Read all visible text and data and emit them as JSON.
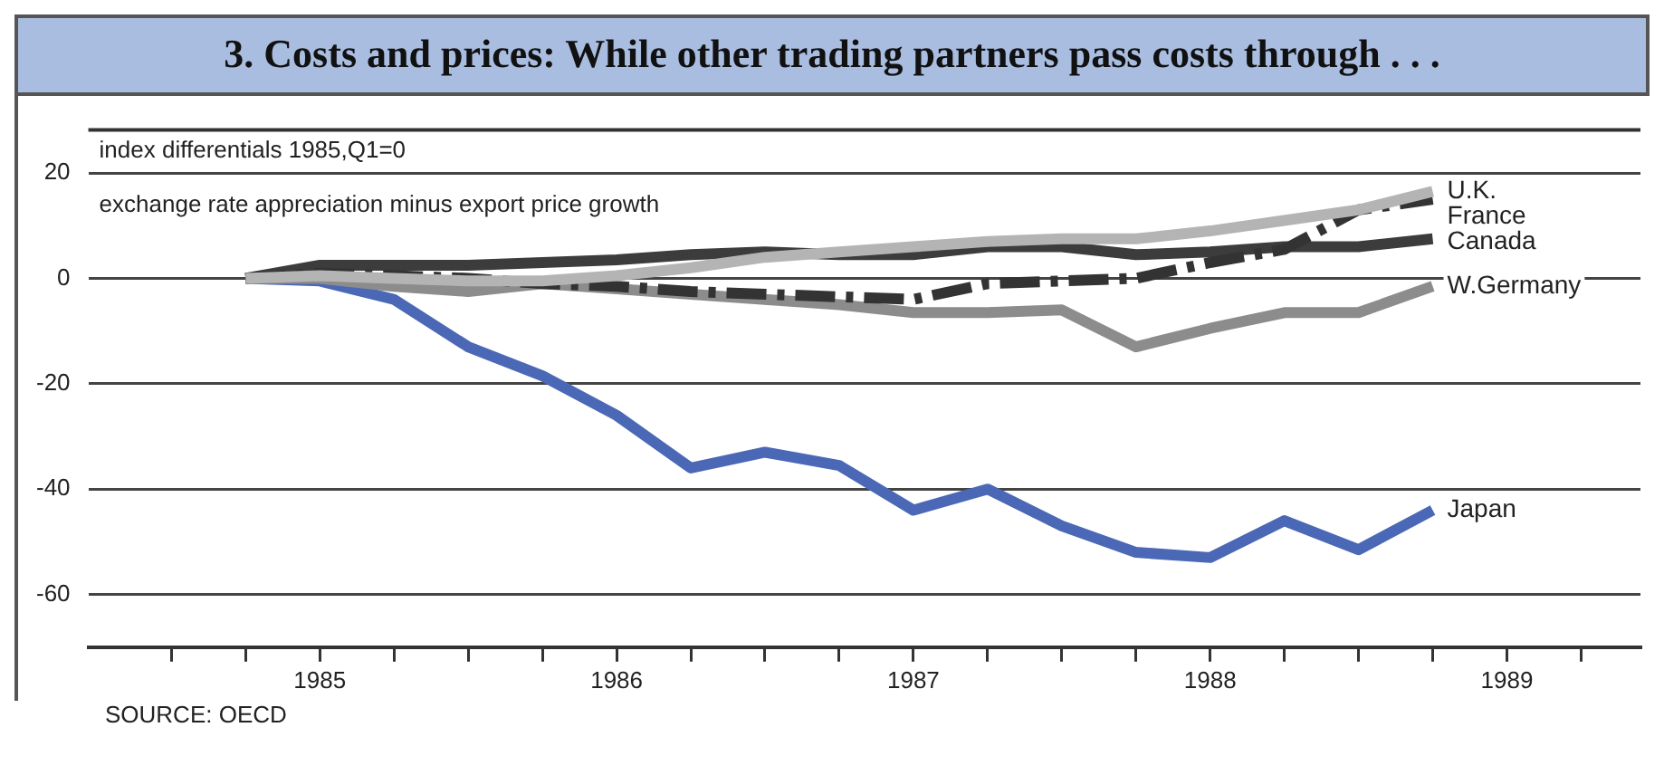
{
  "chart_data": {
    "type": "line",
    "title": "3. Costs and prices: While other trading partners pass costs through . . .",
    "ylabel": "index differentials 1985,Q1=0",
    "subtitle": "exchange rate appreciation minus export price growth",
    "annotations": [
      "SOURCE: OECD"
    ],
    "x": [
      1985.25,
      1985.5,
      1985.75,
      1986,
      1986.25,
      1986.5,
      1986.75,
      1987,
      1987.25,
      1987.5,
      1987.75,
      1988,
      1988.25,
      1988.5,
      1988.75,
      1989,
      1989.25
    ],
    "series": [
      {
        "name": "U.K.",
        "color": "#b4b4b4",
        "values": [
          0,
          0.5,
          0,
          -0.5,
          -0.5,
          0.5,
          2,
          4,
          5,
          6,
          7,
          7.5,
          7.5,
          9,
          11,
          13,
          16.5
        ]
      },
      {
        "name": "France",
        "color": "#333333",
        "line_style": "dashed",
        "values": [
          0,
          1,
          0.5,
          0,
          -1,
          -1.5,
          -2.5,
          -3,
          -3.5,
          -4,
          -1,
          -0.5,
          0,
          3,
          5.5,
          13,
          15
        ]
      },
      {
        "name": "Canada",
        "color": "#3c3c3c",
        "values": [
          0,
          2.5,
          2.5,
          2.5,
          3,
          3.5,
          4.5,
          5,
          4.5,
          4.5,
          6,
          6,
          4.5,
          5,
          6,
          6,
          7.5
        ]
      },
      {
        "name": "W.Germany",
        "color": "#8c8c8c",
        "values": [
          0,
          0,
          -1.5,
          -2.5,
          -1,
          -2,
          -3,
          -4,
          -5,
          -6.5,
          -6.5,
          -6,
          -13,
          -9.5,
          -6.5,
          -6.5,
          -1.5
        ]
      },
      {
        "name": "Japan",
        "color": "#4a68b6",
        "values": [
          0,
          -0.5,
          -4,
          -13,
          -18.5,
          -26,
          -36,
          -33,
          -35.5,
          -44,
          -40,
          -47,
          -52,
          -53,
          -46,
          -51.5,
          -44
        ]
      }
    ],
    "xlim": [
      1984.72,
      1989.95
    ],
    "xticks": [
      {
        "value": 1985,
        "label": null
      },
      {
        "value": 1985.25,
        "label": null
      },
      {
        "value": 1985.5,
        "label": "1985"
      },
      {
        "value": 1985.75,
        "label": null
      },
      {
        "value": 1986,
        "label": null
      },
      {
        "value": 1986.25,
        "label": null
      },
      {
        "value": 1986.5,
        "label": "1986"
      },
      {
        "value": 1986.75,
        "label": null
      },
      {
        "value": 1987,
        "label": null
      },
      {
        "value": 1987.25,
        "label": null
      },
      {
        "value": 1987.5,
        "label": "1987"
      },
      {
        "value": 1987.75,
        "label": null
      },
      {
        "value": 1988,
        "label": null
      },
      {
        "value": 1988.25,
        "label": null
      },
      {
        "value": 1988.5,
        "label": "1988"
      },
      {
        "value": 1988.75,
        "label": null
      },
      {
        "value": 1989,
        "label": null
      },
      {
        "value": 1989.25,
        "label": null
      },
      {
        "value": 1989.5,
        "label": "1989"
      },
      {
        "value": 1989.75,
        "label": null
      }
    ],
    "ylim": [
      -70,
      28.5
    ],
    "yticks": [
      -60,
      -40,
      -20,
      0,
      20
    ],
    "grid": "y",
    "legend": false,
    "line_style": "solid"
  }
}
